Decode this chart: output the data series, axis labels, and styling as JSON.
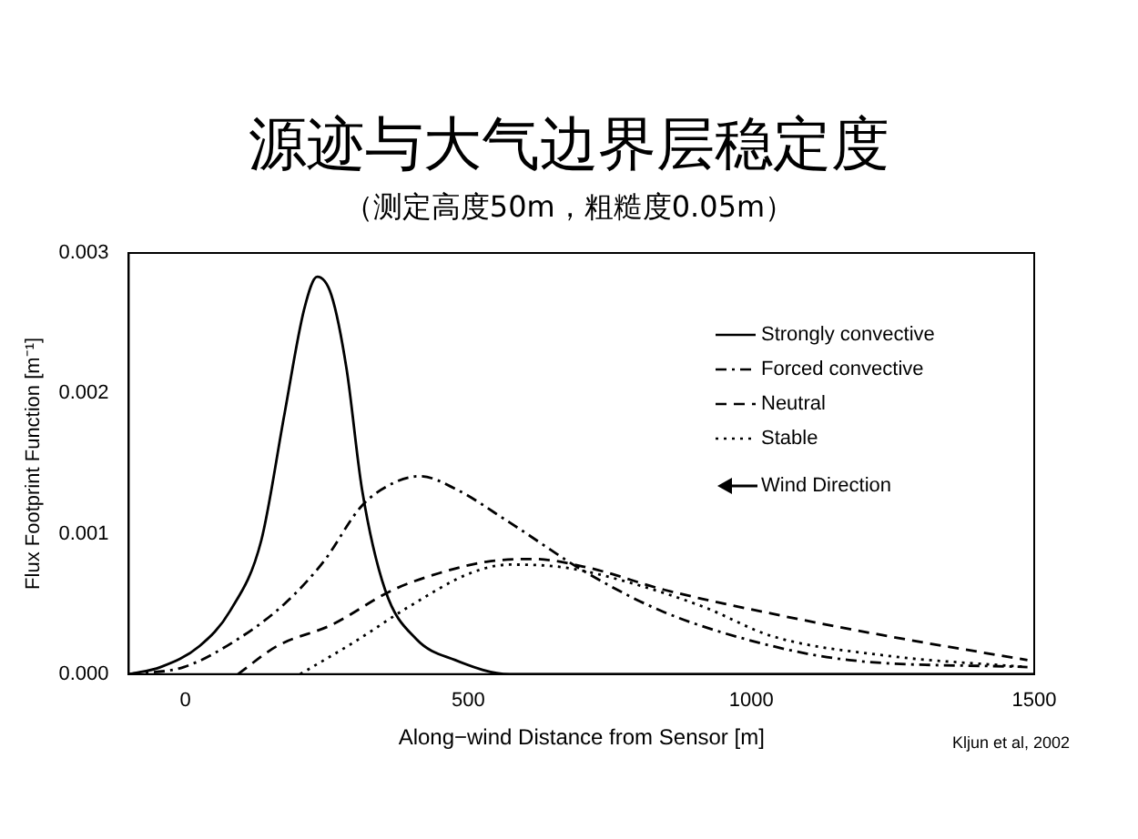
{
  "chart_data": {
    "type": "line",
    "title": "源迹与大气边界层稳定度",
    "subtitle": "（测定高度50m，粗糙度0.05m）",
    "xlabel": "Along−wind Distance from Sensor [m]",
    "ylabel": "Flux Footprint Function [m⁻¹]",
    "annotations": [
      "Wind Direction",
      "Kljun et al, 2002"
    ],
    "xlim": [
      -100,
      1500
    ],
    "xticks": [
      0,
      500,
      1000,
      1500
    ],
    "ylim": [
      0,
      0.003
    ],
    "yticks": [
      {
        "value": 0,
        "label": "0.000"
      },
      {
        "value": 0.001,
        "label": "0.001"
      },
      {
        "value": 0.002,
        "label": "0.002"
      },
      {
        "value": 0.003,
        "label": "0.003"
      }
    ],
    "grid": false,
    "legend": "top right",
    "marker": "none",
    "series": [
      {
        "name": "Strongly convective",
        "color": "#000000",
        "line_style": "solid",
        "x": [
          -99,
          -44,
          25,
          79,
          134,
          175,
          210,
          233,
          258,
          285,
          312,
          353,
          408,
          477,
          573,
          800,
          1100,
          1500
        ],
        "values": [
          0,
          5e-05,
          0.0002,
          0.00045,
          0.00095,
          0.00185,
          0.0026,
          0.00283,
          0.0027,
          0.00217,
          0.00132,
          0.0006,
          0.00025,
          0.0001,
          0,
          0,
          0,
          0
        ]
      },
      {
        "name": "Forced convective",
        "color": "#000000",
        "line_style": "dashdot",
        "x": [
          -99,
          -3,
          93,
          175,
          244,
          312,
          367,
          415,
          477,
          573,
          710,
          847,
          1037,
          1173,
          1488
        ],
        "values": [
          0,
          5e-05,
          0.00025,
          0.0005,
          0.0008,
          0.0012,
          0.00136,
          0.00141,
          0.00132,
          0.00108,
          0.00072,
          0.00044,
          0.0002,
          0.0001,
          5e-05
        ]
      },
      {
        "name": "Neutral",
        "color": "#000000",
        "line_style": "dashed",
        "x": [
          93,
          162,
          258,
          367,
          449,
          532,
          614,
          710,
          847,
          1037,
          1242,
          1488
        ],
        "values": [
          0,
          0.0002,
          0.00035,
          0.0006,
          0.00072,
          0.0008,
          0.00082,
          0.00076,
          0.0006,
          0.00043,
          0.00027,
          0.0001
        ]
      },
      {
        "name": "Stable",
        "color": "#000000",
        "line_style": "dotted",
        "x": [
          203,
          299,
          395,
          504,
          573,
          669,
          778,
          915,
          1037,
          1242,
          1488
        ],
        "values": [
          0,
          0.00023,
          0.00048,
          0.00072,
          0.00078,
          0.00076,
          0.00066,
          0.00048,
          0.00027,
          0.00013,
          5e-05
        ]
      }
    ]
  }
}
